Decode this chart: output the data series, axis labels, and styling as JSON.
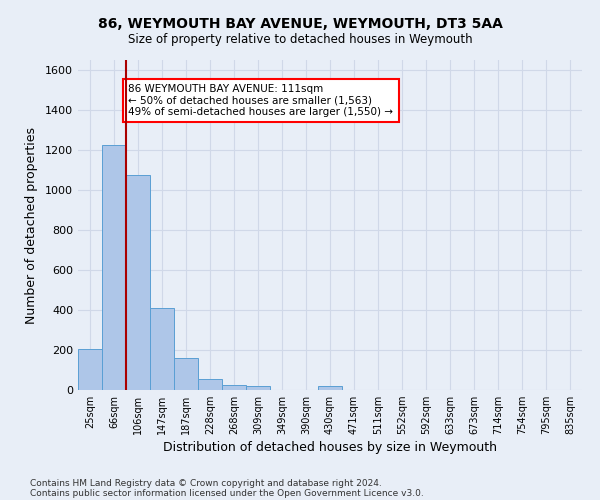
{
  "title": "86, WEYMOUTH BAY AVENUE, WEYMOUTH, DT3 5AA",
  "subtitle": "Size of property relative to detached houses in Weymouth",
  "xlabel": "Distribution of detached houses by size in Weymouth",
  "ylabel": "Number of detached properties",
  "bar_labels": [
    "25sqm",
    "66sqm",
    "106sqm",
    "147sqm",
    "187sqm",
    "228sqm",
    "268sqm",
    "309sqm",
    "349sqm",
    "390sqm",
    "430sqm",
    "471sqm",
    "511sqm",
    "552sqm",
    "592sqm",
    "633sqm",
    "673sqm",
    "714sqm",
    "754sqm",
    "795sqm",
    "835sqm"
  ],
  "bar_heights": [
    205,
    1225,
    1075,
    410,
    160,
    55,
    25,
    20,
    0,
    0,
    20,
    0,
    0,
    0,
    0,
    0,
    0,
    0,
    0,
    0,
    0
  ],
  "bar_color": "#aec6e8",
  "bar_edge_color": "#5a9fd4",
  "background_color": "#e8eef7",
  "grid_color": "#d0d8e8",
  "vline_color": "#aa0000",
  "ylim": [
    0,
    1650
  ],
  "yticks": [
    0,
    200,
    400,
    600,
    800,
    1000,
    1200,
    1400,
    1600
  ],
  "annotation_title": "86 WEYMOUTH BAY AVENUE: 111sqm",
  "annotation_line1": "← 50% of detached houses are smaller (1,563)",
  "annotation_line2": "49% of semi-detached houses are larger (1,550) →",
  "annotation_box_color": "white",
  "annotation_box_edge": "red",
  "footer_line1": "Contains HM Land Registry data © Crown copyright and database right 2024.",
  "footer_line2": "Contains public sector information licensed under the Open Government Licence v3.0."
}
